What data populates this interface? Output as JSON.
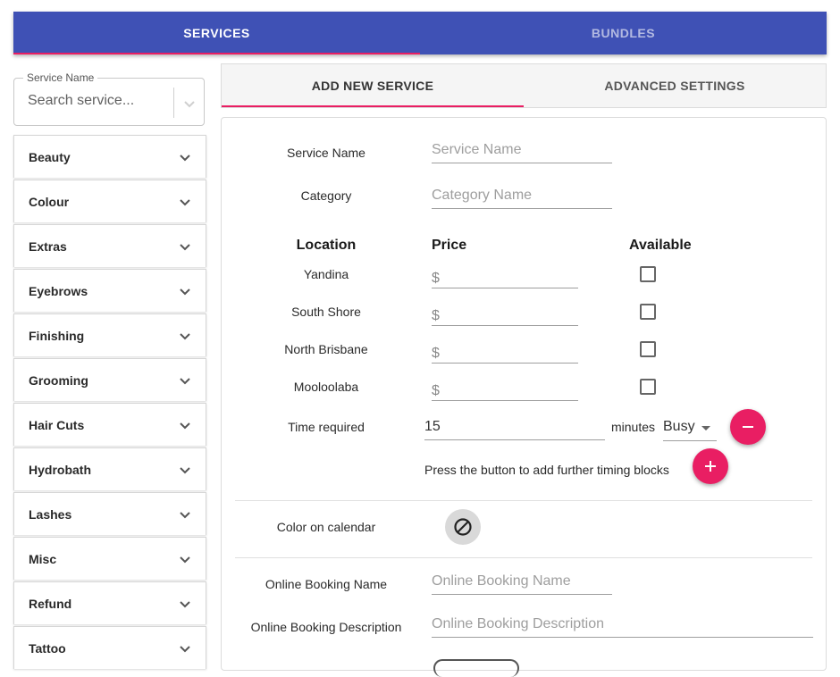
{
  "top_tabs": [
    {
      "label": "SERVICES",
      "active": true
    },
    {
      "label": "BUNDLES",
      "active": false
    }
  ],
  "search": {
    "label": "Service Name",
    "placeholder": "Search service...",
    "icon": "chevron-down-icon"
  },
  "categories": [
    "Beauty",
    "Colour",
    "Extras",
    "Eyebrows",
    "Finishing",
    "Grooming",
    "Hair Cuts",
    "Hydrobath",
    "Lashes",
    "Misc",
    "Refund",
    "Tattoo"
  ],
  "right_tabs": [
    {
      "label": "ADD NEW SERVICE",
      "active": true
    },
    {
      "label": "ADVANCED SETTINGS",
      "active": false
    }
  ],
  "form": {
    "service_name_label": "Service Name",
    "service_name_placeholder": "Service Name",
    "category_label": "Category",
    "category_placeholder": "Category Name",
    "col_location": "Location",
    "col_price": "Price",
    "col_available": "Available",
    "currency_symbol": "$",
    "locations": [
      "Yandina",
      "South Shore",
      "North Brisbane",
      "Mooloolaba"
    ],
    "time_label": "Time required",
    "time_value": "15",
    "time_unit": "minutes",
    "status_value": "Busy",
    "timing_hint": "Press the button to add further timing blocks",
    "color_label": "Color on calendar",
    "online_name_label": "Online Booking Name",
    "online_name_placeholder": "Online Booking Name",
    "online_desc_label": "Online Booking Description",
    "online_desc_placeholder": "Online Booking Description"
  },
  "colors": {
    "primary": "#3f51b5",
    "accent": "#e91e63"
  }
}
